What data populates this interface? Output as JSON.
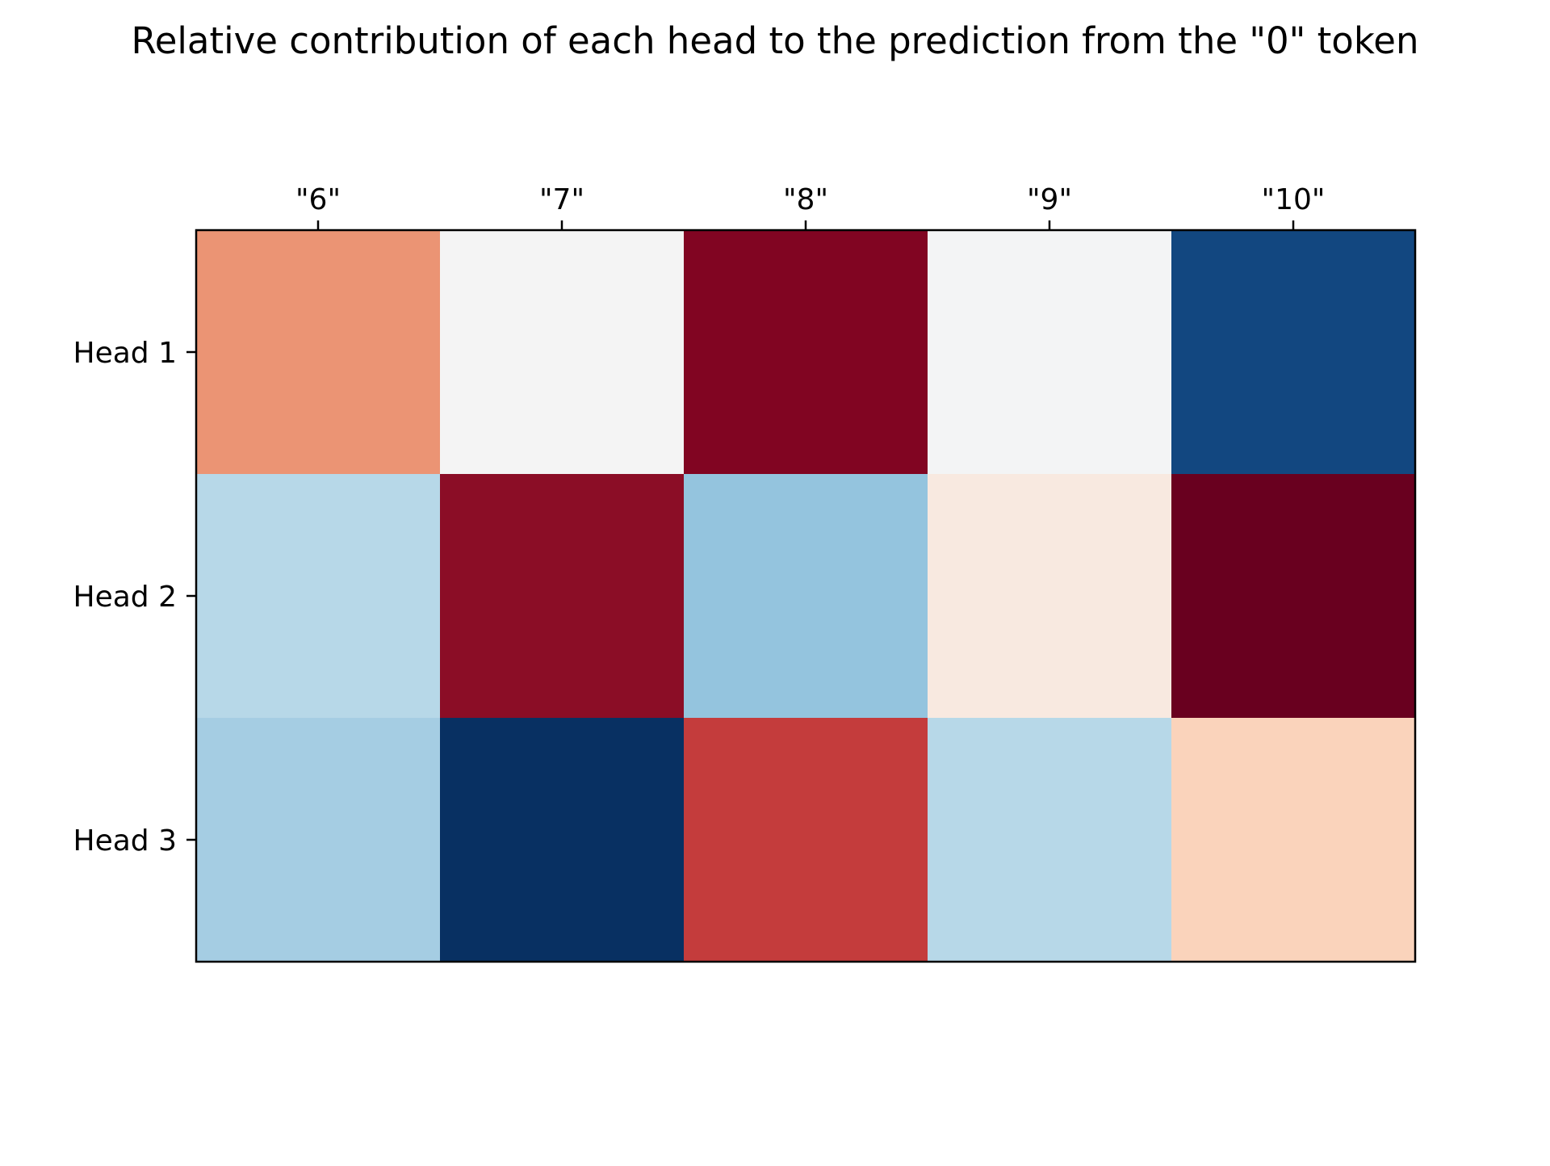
{
  "chart_data": {
    "type": "heatmap",
    "title": "Relative contribution of each head to the prediction from the \"0\" token",
    "x_categories": [
      "\"6\"",
      "\"7\"",
      "\"8\"",
      "\"9\"",
      "\"10\""
    ],
    "y_categories": [
      "Head 1",
      "Head 2",
      "Head 3"
    ],
    "x_tick_position": "top",
    "colormap": "RdBu_r",
    "cell_colors": [
      [
        "#eb9474",
        "#f4f4f4",
        "#810522",
        "#f3f4f5",
        "#124780"
      ],
      [
        "#b7d8e8",
        "#8b0d26",
        "#94c4de",
        "#f8e9e0",
        "#69001f"
      ],
      [
        "#a5cde3",
        "#083062",
        "#c43c3c",
        "#b7d8e8",
        "#fad3bb"
      ]
    ],
    "grid": false,
    "legend": "none"
  }
}
